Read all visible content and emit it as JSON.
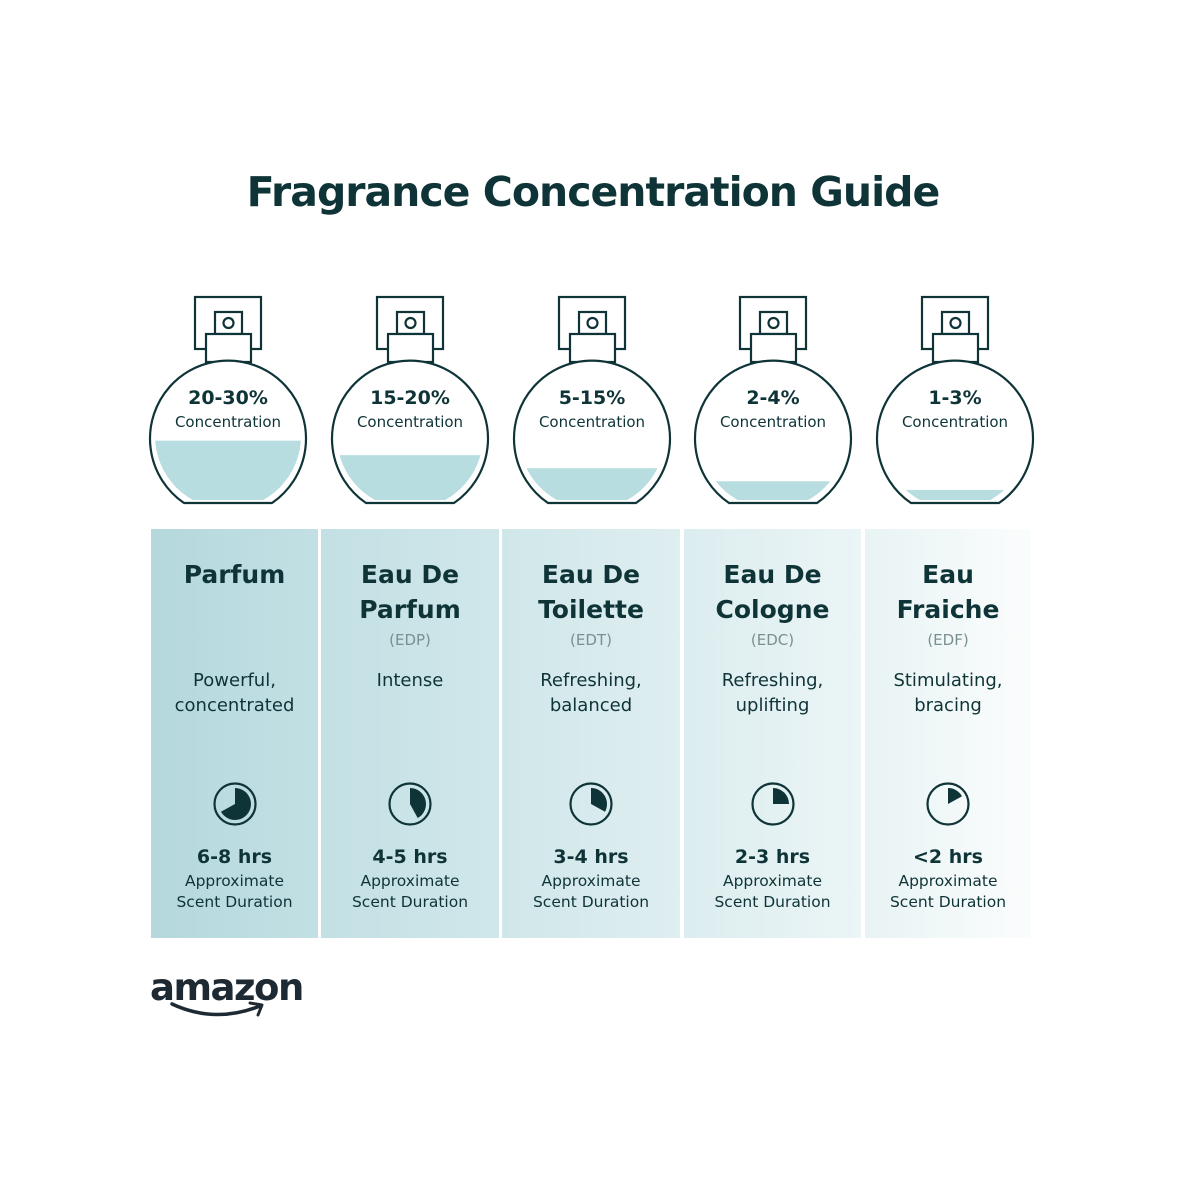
{
  "title": "Fragrance Concentration Guide",
  "colors": {
    "text": "#0f3437",
    "fill": "#b8dde0",
    "column_start": "#b5d8dd",
    "column_end": "#ffffff"
  },
  "types": [
    {
      "concentration": "20-30%",
      "concentration_label": "Concentration",
      "fill_level": 0.43,
      "name_lines": [
        "Parfum"
      ],
      "abbr": "",
      "description_lines": [
        "Powerful,",
        "concentrated"
      ],
      "duration": "6-8 hrs",
      "duration_fraction": 0.67,
      "duration_label_lines": [
        "Approximate",
        "Scent Duration"
      ]
    },
    {
      "concentration": "15-20%",
      "concentration_label": "Concentration",
      "fill_level": 0.33,
      "name_lines": [
        "Eau De",
        "Parfum"
      ],
      "abbr": "(EDP)",
      "description_lines": [
        "Intense"
      ],
      "duration": "4-5 hrs",
      "duration_fraction": 0.42,
      "duration_label_lines": [
        "Approximate",
        "Scent Duration"
      ]
    },
    {
      "concentration": "5-15%",
      "concentration_label": "Concentration",
      "fill_level": 0.24,
      "name_lines": [
        "Eau De",
        "Toilette"
      ],
      "abbr": "(EDT)",
      "description_lines": [
        "Refreshing,",
        "balanced"
      ],
      "duration": "3-4 hrs",
      "duration_fraction": 0.33,
      "duration_label_lines": [
        "Approximate",
        "Scent Duration"
      ]
    },
    {
      "concentration": "2-4%",
      "concentration_label": "Concentration",
      "fill_level": 0.15,
      "name_lines": [
        "Eau De",
        "Cologne"
      ],
      "abbr": "(EDC)",
      "description_lines": [
        "Refreshing,",
        "uplifting"
      ],
      "duration": "2-3 hrs",
      "duration_fraction": 0.25,
      "duration_label_lines": [
        "Approximate",
        "Scent Duration"
      ]
    },
    {
      "concentration": "1-3%",
      "concentration_label": "Concentration",
      "fill_level": 0.09,
      "name_lines": [
        "Eau",
        "Fraiche"
      ],
      "abbr": "(EDF)",
      "description_lines": [
        "Stimulating,",
        "bracing"
      ],
      "duration": "<2 hrs",
      "duration_fraction": 0.17,
      "duration_label_lines": [
        "Approximate",
        "Scent Duration"
      ]
    }
  ],
  "logo": {
    "text": "amazon",
    "icon": "amazon-smile-arrow"
  }
}
